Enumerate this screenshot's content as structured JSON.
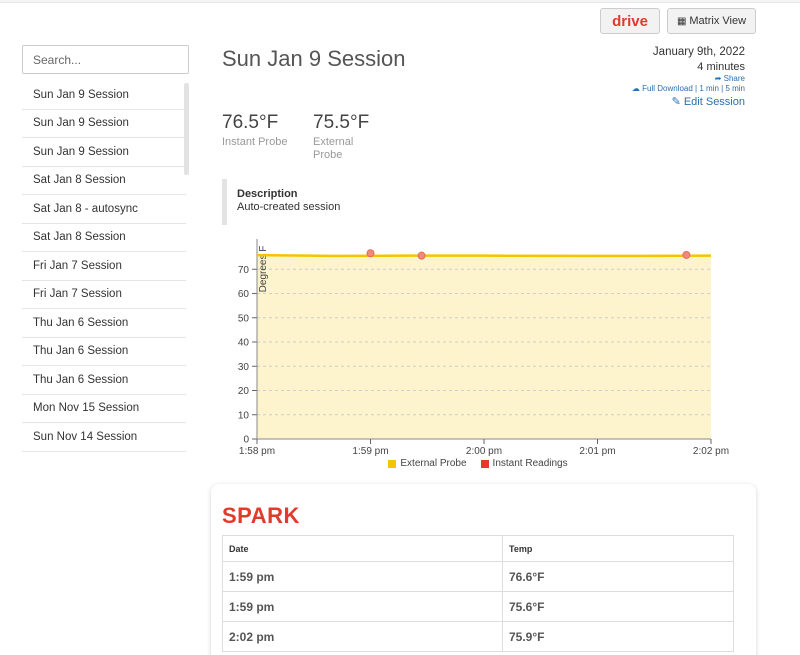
{
  "toolbar": {
    "drive_label": "drive",
    "matrix_label": "Matrix View"
  },
  "search": {
    "placeholder": "Search..."
  },
  "sessions": [
    "Sun Jan 9 Session",
    "Sun Jan 9 Session",
    "Sun Jan 9 Session",
    "Sat Jan 8 Session",
    "Sat Jan 8 - autosync",
    "Sat Jan 8 Session",
    "Fri Jan 7 Session",
    "Fri Jan 7 Session",
    "Thu Jan 6 Session",
    "Thu Jan 6 Session",
    "Thu Jan 6 Session",
    "Mon Nov 15 Session",
    "Sun Nov 14 Session"
  ],
  "session": {
    "title": "Sun Jan 9 Session",
    "date": "January 9th, 2022",
    "duration": "4 minutes",
    "share_label": "Share",
    "full_download_label": "Full Download",
    "one_min_label": "1 min",
    "five_min_label": "5 min",
    "edit_label": "Edit Session"
  },
  "stats": {
    "instant": {
      "value": "76.5°F",
      "label": "Instant Probe"
    },
    "external": {
      "value": "75.5°F",
      "label": "External Probe"
    }
  },
  "description": {
    "title": "Description",
    "text": "Auto-created session"
  },
  "colors": {
    "accent": "#e23b2c",
    "link": "#2a6fb0",
    "external_line": "#f5c400",
    "external_fill": "#fdf3cc",
    "instant_point": "#f08a7a"
  },
  "chart_data": {
    "type": "line",
    "ylabel": "Degrees F",
    "ylim": [
      0,
      80
    ],
    "yticks": [
      0,
      10,
      20,
      30,
      40,
      50,
      60,
      70
    ],
    "xlim": [
      "1:58 pm",
      "2:02 pm"
    ],
    "xticks": [
      "1:58 pm",
      "1:59 pm",
      "2:00 pm",
      "2:01 pm",
      "2:02 pm"
    ],
    "grid": "horizontal dashed",
    "legend_position": "bottom",
    "series": [
      {
        "name": "External Probe",
        "type": "area",
        "x": [
          "1:58:00 pm",
          "1:58:40 pm",
          "1:59:20 pm",
          "2:00:00 pm",
          "2:01:00 pm",
          "2:02:00 pm"
        ],
        "values": [
          75.8,
          75.5,
          75.6,
          75.6,
          75.5,
          75.6
        ]
      },
      {
        "name": "Instant Readings",
        "type": "scatter",
        "x": [
          "1:59:00 pm",
          "1:59:27 pm",
          "2:01:47 pm"
        ],
        "values": [
          76.6,
          75.6,
          75.9
        ]
      }
    ]
  },
  "spark": {
    "logo": "SPARK",
    "headers": [
      "Date",
      "Temp"
    ],
    "rows": [
      {
        "date": "1:59 pm",
        "temp": "76.6°F"
      },
      {
        "date": "1:59 pm",
        "temp": "75.6°F"
      },
      {
        "date": "2:02 pm",
        "temp": "75.9°F"
      }
    ]
  }
}
